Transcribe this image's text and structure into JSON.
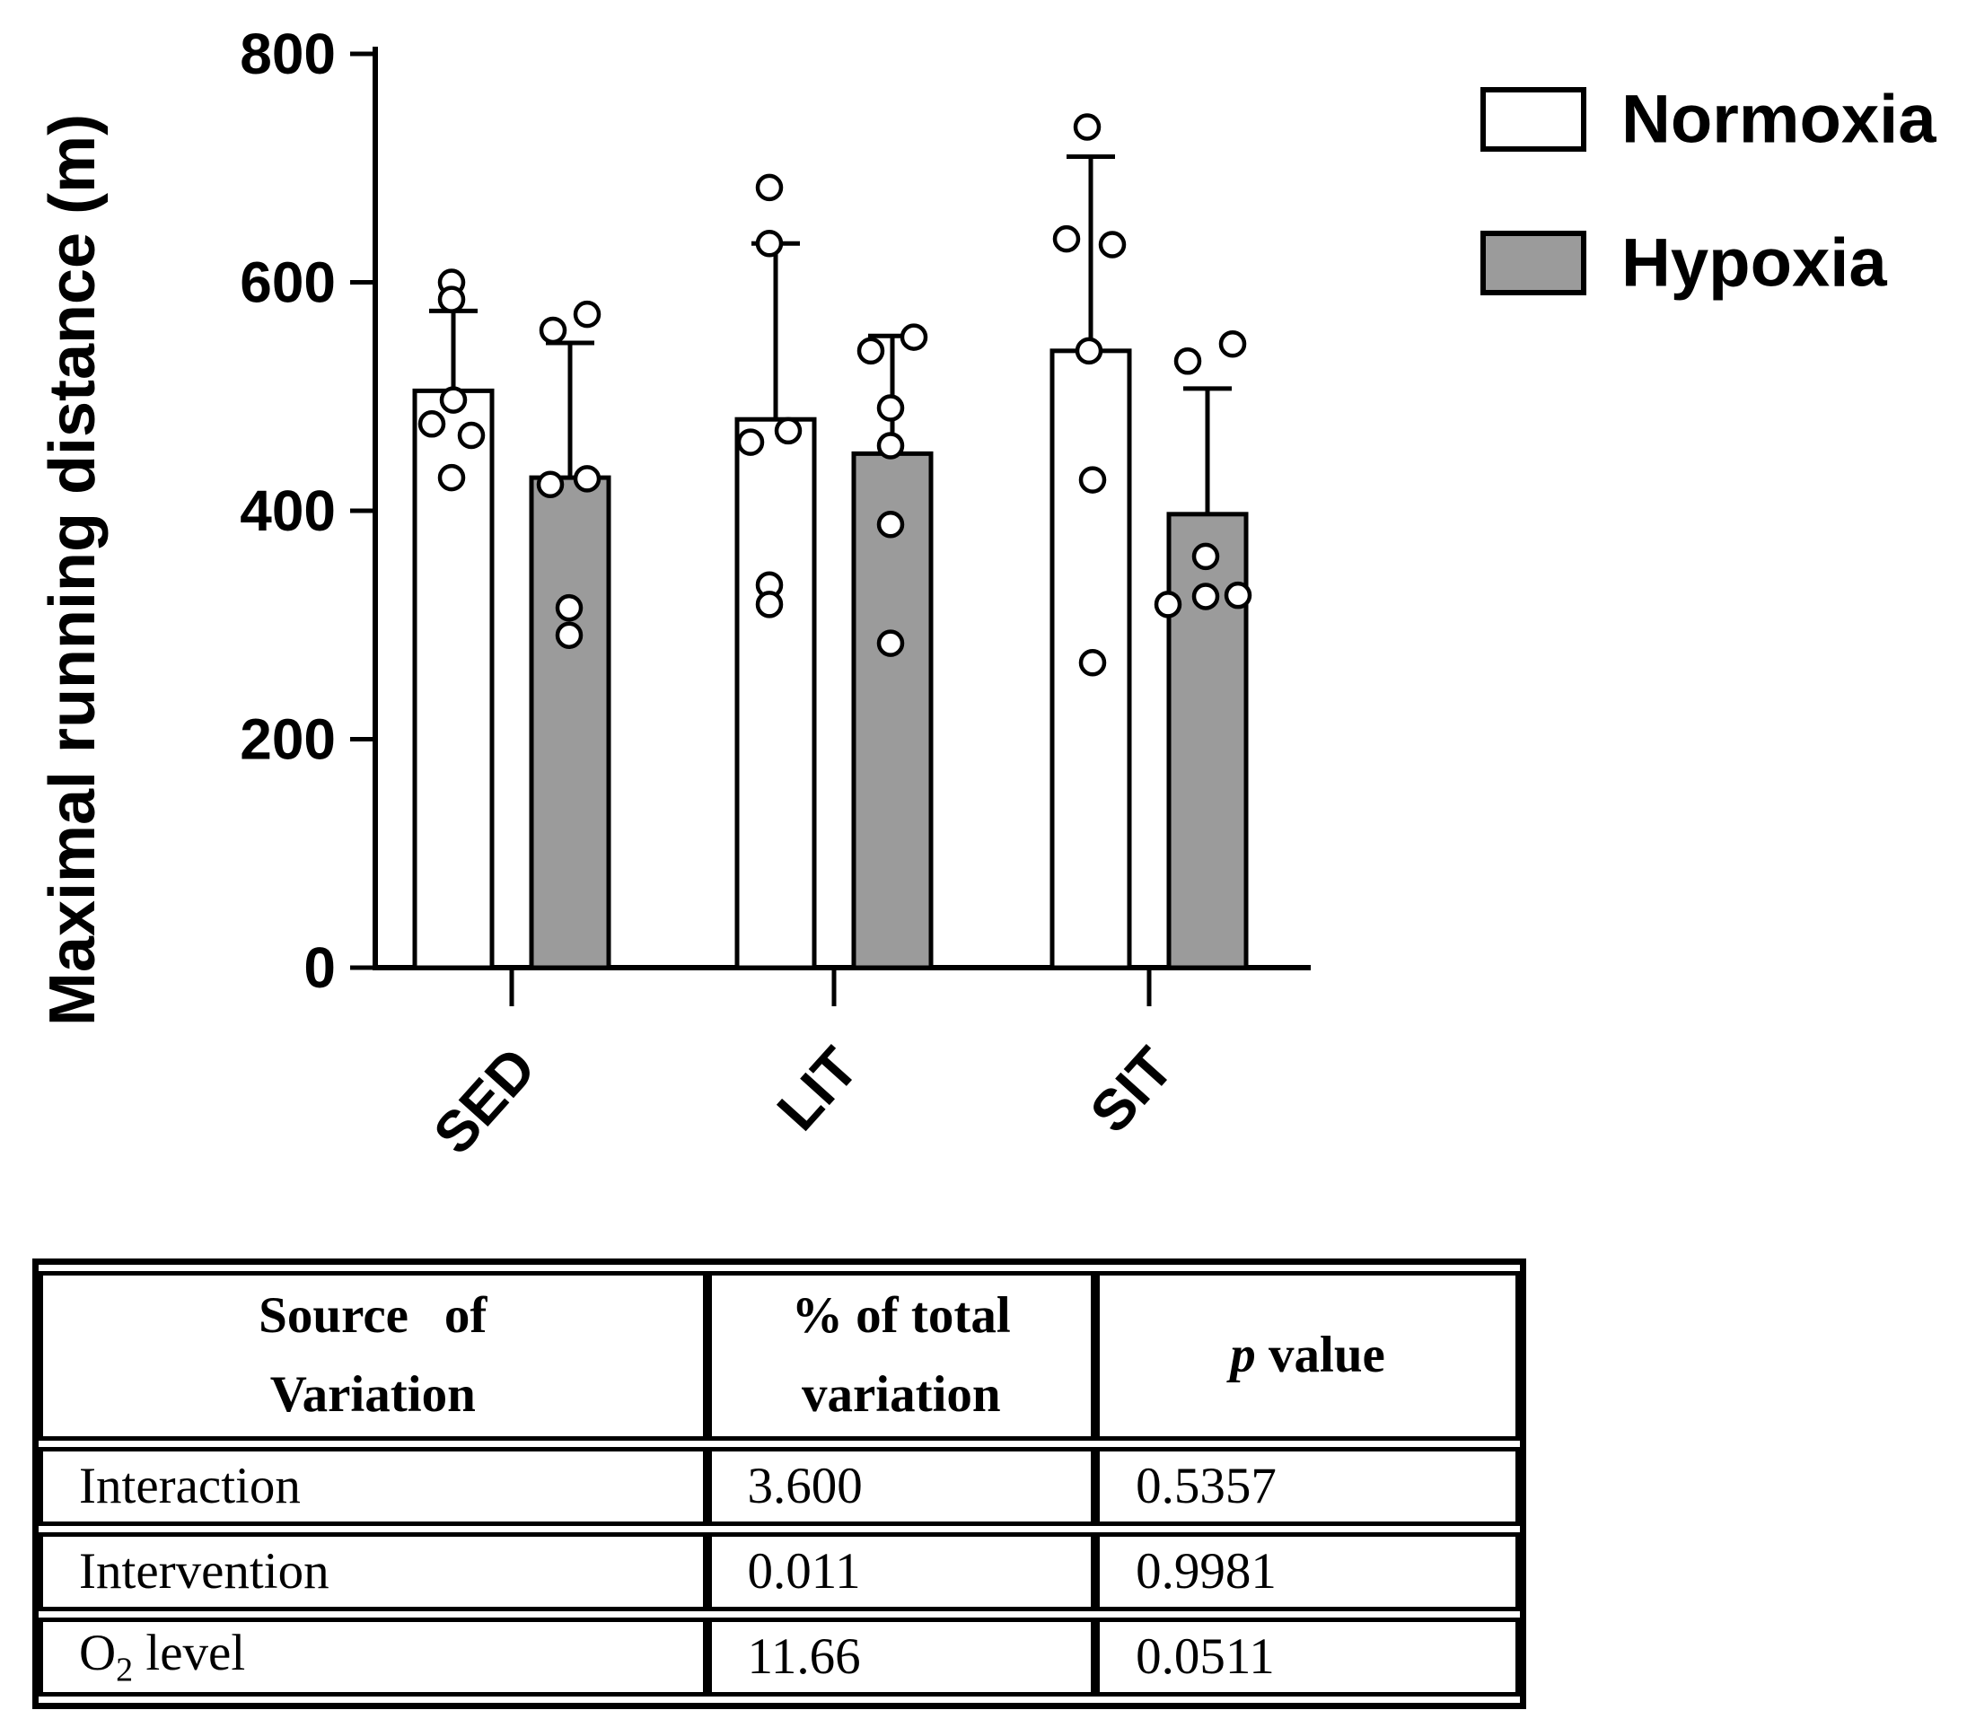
{
  "figure": {
    "background": "#ffffff",
    "ink_color": "#000000"
  },
  "chart_data": {
    "type": "bar",
    "title": "",
    "xlabel": "",
    "ylabel": "Maximal running distance (m)",
    "ylim": [
      0,
      800
    ],
    "yticks": [
      0,
      200,
      400,
      600,
      800
    ],
    "grid": false,
    "legend_position": "top-right",
    "categories": [
      "SED",
      "LIT",
      "SIT"
    ],
    "series": [
      {
        "name": "Normoxia",
        "fill": "#ffffff",
        "means": [
          505,
          480,
          540
        ],
        "error_top": [
          575,
          634,
          710
        ],
        "points": [
          [
            600,
            585,
            497,
            476,
            466,
            429
          ],
          [
            683,
            634,
            470,
            460,
            335,
            318
          ],
          [
            736,
            638,
            633,
            540,
            427,
            267
          ]
        ],
        "point_dx": [
          [
            -2,
            -2,
            0,
            -24,
            20,
            -2
          ],
          [
            -7,
            -7,
            14,
            -28,
            -7,
            -7
          ],
          [
            -4,
            -27,
            24,
            -2,
            2,
            2
          ]
        ]
      },
      {
        "name": "Hypoxia",
        "fill": "#9b9b9b",
        "means": [
          429,
          450,
          397
        ],
        "error_top": [
          547,
          553,
          507
        ],
        "points": [
          [
            572,
            558,
            428,
            423,
            315,
            291
          ],
          [
            552,
            540,
            490,
            457,
            388,
            284
          ],
          [
            546,
            531,
            360,
            326,
            325,
            318
          ]
        ],
        "point_dx": [
          [
            19,
            -19,
            19,
            -22,
            -1,
            -1
          ],
          [
            24,
            -24,
            -2,
            -2,
            -2,
            -2
          ],
          [
            28,
            -22,
            -2,
            34,
            -2,
            -44
          ]
        ]
      }
    ]
  },
  "legend": {
    "items": [
      {
        "label": "Normoxia",
        "fill": "#ffffff"
      },
      {
        "label": "Hypoxia",
        "fill": "#9b9b9b"
      }
    ]
  },
  "table": {
    "headers": [
      {
        "line1": "Source of",
        "line2": "Variation"
      },
      {
        "line1": "% of total",
        "line2": "variation"
      },
      {
        "italic": "p",
        "rest": " value"
      }
    ],
    "rows": [
      {
        "source": "Interaction",
        "pct": "3.600",
        "p": "0.5357"
      },
      {
        "source": "Intervention",
        "pct": "0.011",
        "p": "0.9981"
      },
      {
        "source_o": "O",
        "source_sub": "2",
        "source_rest": " level",
        "pct": "11.66",
        "p": "0.0511"
      }
    ]
  }
}
